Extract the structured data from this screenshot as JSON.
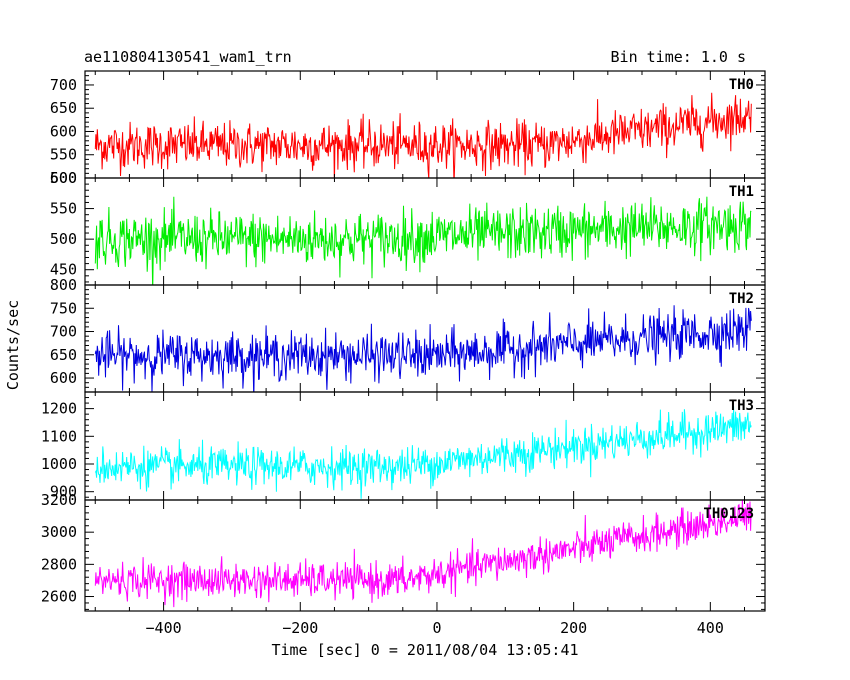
{
  "header": {
    "title": "ae110804130541_wam1_trn",
    "bin_time": "Bin time: 1.0 s"
  },
  "axes": {
    "xlabel": "Time [sec] 0 = 2011/08/04 13:05:41",
    "ylabel": "Counts/sec"
  },
  "chart_data": [
    {
      "type": "line",
      "name": "TH0",
      "color": "#ff0000",
      "xlim": [
        -515,
        480
      ],
      "ylim": [
        500,
        730
      ],
      "yticks": [
        500,
        550,
        600,
        650,
        700
      ],
      "xticks": [
        -400,
        -200,
        0,
        200,
        400
      ],
      "x_range": [
        -500,
        460
      ],
      "trend": {
        "start_mean": 570,
        "flat_until": 150,
        "end_mean": 635,
        "noise_sd": 25
      }
    },
    {
      "type": "line",
      "name": "TH1",
      "color": "#00ee00",
      "xlim": [
        -515,
        480
      ],
      "ylim": [
        425,
        600
      ],
      "yticks": [
        450,
        500,
        550,
        600
      ],
      "xticks": [
        -400,
        -200,
        0,
        200,
        400
      ],
      "x_range": [
        -500,
        460
      ],
      "trend": {
        "start_mean": 500,
        "flat_until": -100,
        "end_mean": 525,
        "noise_sd": 22
      }
    },
    {
      "type": "line",
      "name": "TH2",
      "color": "#0000e0",
      "xlim": [
        -515,
        480
      ],
      "ylim": [
        570,
        800
      ],
      "yticks": [
        600,
        650,
        700,
        750,
        800
      ],
      "xticks": [
        -400,
        -200,
        0,
        200,
        400
      ],
      "x_range": [
        -500,
        460
      ],
      "trend": {
        "start_mean": 648,
        "flat_until": 0,
        "end_mean": 705,
        "noise_sd": 25
      }
    },
    {
      "type": "line",
      "name": "TH3",
      "color": "#00ffff",
      "xlim": [
        -515,
        480
      ],
      "ylim": [
        870,
        1260
      ],
      "yticks": [
        900,
        1000,
        1100,
        1200
      ],
      "xticks": [
        -400,
        -200,
        0,
        200,
        400
      ],
      "x_range": [
        -500,
        460
      ],
      "trend": {
        "start_mean": 990,
        "flat_until": -50,
        "end_mean": 1140,
        "noise_sd": 35
      }
    },
    {
      "type": "line",
      "name": "TH0123",
      "color": "#ff00ff",
      "xlim": [
        -515,
        480
      ],
      "ylim": [
        2510,
        3200
      ],
      "yticks": [
        2600,
        2800,
        3000,
        3200
      ],
      "xticks": [
        -400,
        -200,
        0,
        200,
        400
      ],
      "x_range": [
        -500,
        460
      ],
      "trend": {
        "start_mean": 2700,
        "flat_until": -50,
        "end_mean": 3100,
        "noise_sd": 55
      }
    }
  ]
}
